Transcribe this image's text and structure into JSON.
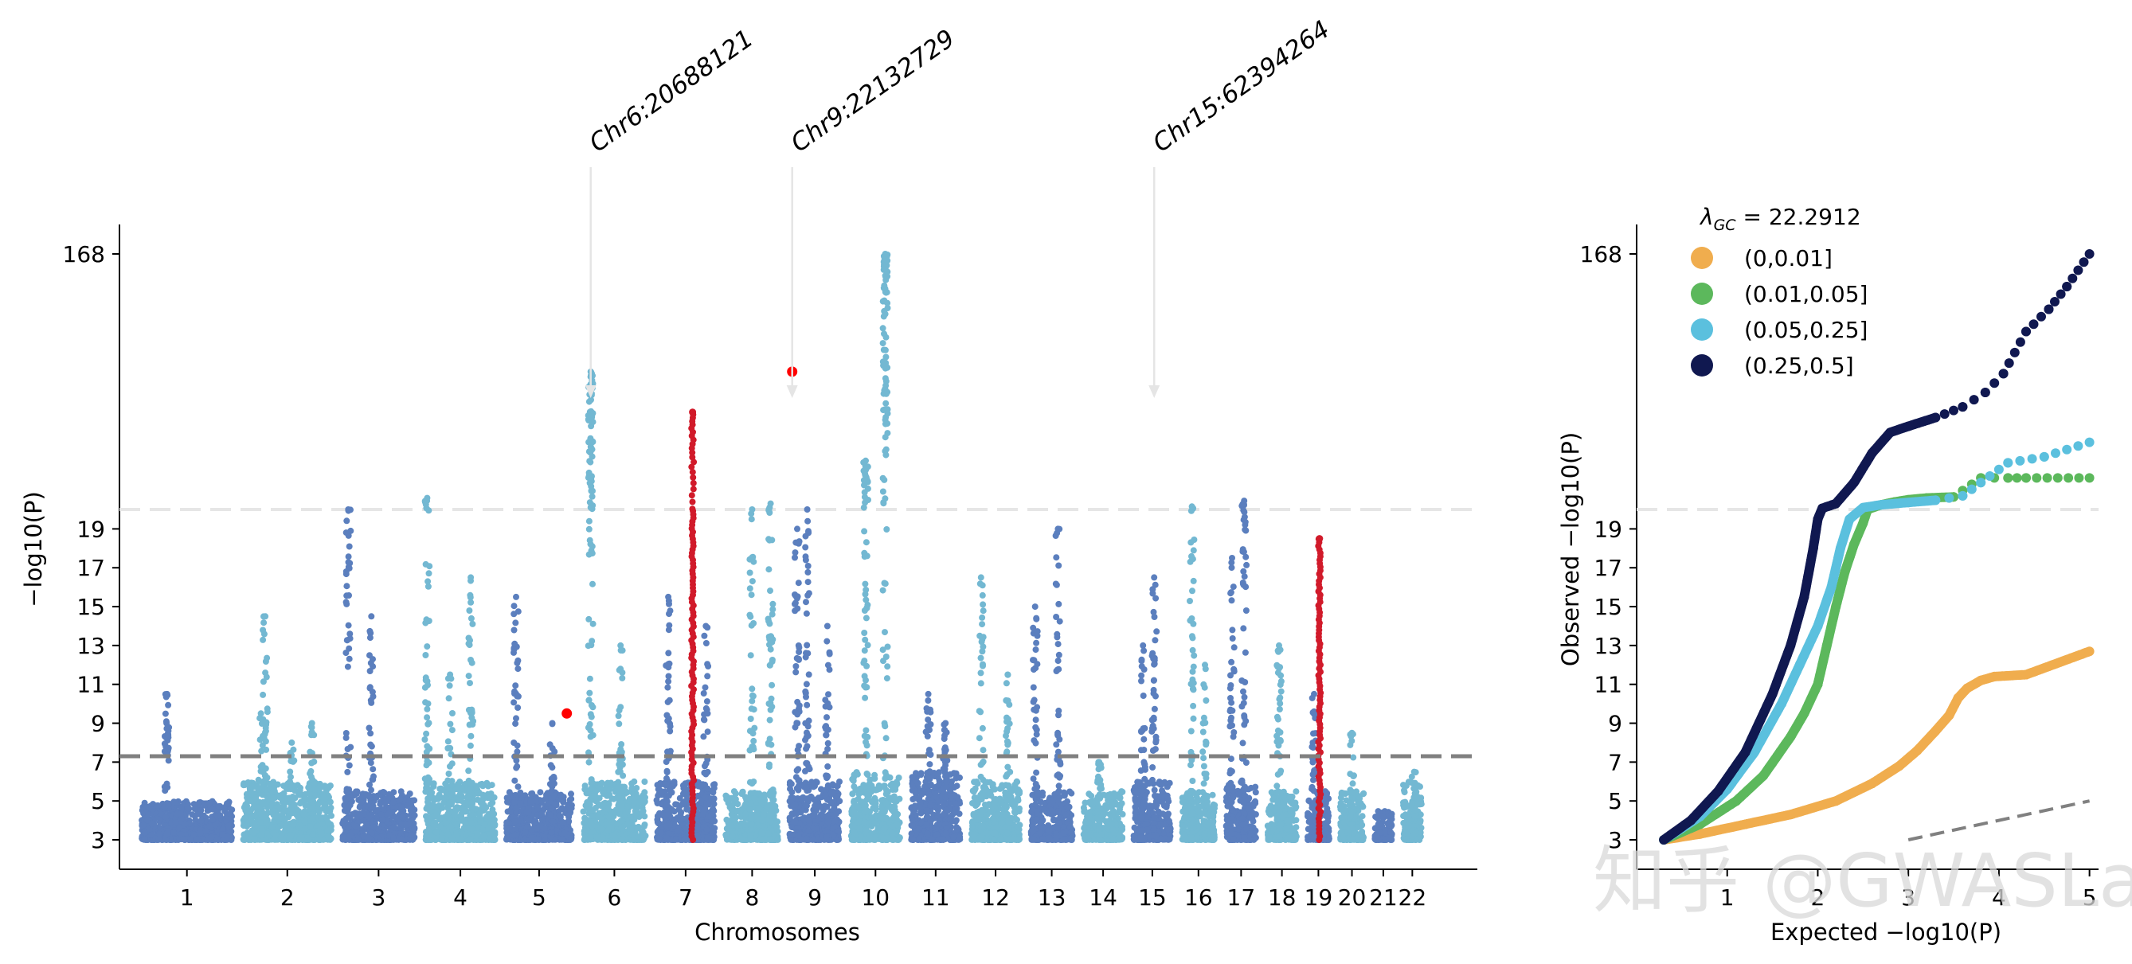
{
  "chart_data": [
    {
      "type": "scatter",
      "title": "",
      "xlabel": "Chromosomes",
      "ylabel": "−log10(P)",
      "yticks": [
        3,
        5,
        7,
        9,
        11,
        13,
        15,
        17,
        19,
        168
      ],
      "y_scale": "broken: linear 3–20, compressed 20–168",
      "chromosomes": [
        {
          "label": "1",
          "size": 248,
          "color": "#5b7fbe",
          "baseline_max": 5.0,
          "peaks": [
            {
              "pos": 0.28,
              "max": 10.5
            }
          ]
        },
        {
          "label": "2",
          "size": 242,
          "color": "#73b8d2",
          "baseline_max": 6.0,
          "peaks": [
            {
              "pos": 0.25,
              "max": 14.5
            },
            {
              "pos": 0.2,
              "max": 9.5
            },
            {
              "pos": 0.78,
              "max": 9.0
            },
            {
              "pos": 0.55,
              "max": 8.0
            }
          ]
        },
        {
          "label": "3",
          "size": 198,
          "color": "#5b7fbe",
          "baseline_max": 5.5,
          "peaks": [
            {
              "pos": 0.08,
              "max": 20.0
            },
            {
              "pos": 0.4,
              "max": 14.5
            }
          ]
        },
        {
          "label": "4",
          "size": 190,
          "color": "#73b8d2",
          "baseline_max": 6.0,
          "peaks": [
            {
              "pos": 0.02,
              "max": 22.0
            },
            {
              "pos": 0.35,
              "max": 11.5
            },
            {
              "pos": 0.65,
              "max": 16.5
            }
          ]
        },
        {
          "label": "5",
          "size": 181,
          "color": "#5b7fbe",
          "baseline_max": 5.5,
          "peaks": [
            {
              "pos": 0.15,
              "max": 15.5
            },
            {
              "pos": 0.7,
              "max": 9.0
            }
          ]
        },
        {
          "label": "6",
          "size": 171,
          "color": "#73b8d2",
          "baseline_max": 6.0,
          "peaks": [
            {
              "pos": 0.12,
              "max": 63.0
            },
            {
              "pos": 0.6,
              "max": 13.0
            }
          ]
        },
        {
          "label": "7",
          "size": 159,
          "color": "#5b7fbe",
          "baseline_max": 6.0,
          "peaks": [
            {
              "pos": 0.2,
              "max": 15.5
            },
            {
              "pos": 0.85,
              "max": 14.0
            }
          ]
        },
        {
          "label": "8",
          "size": 145,
          "color": "#73b8d2",
          "baseline_max": 5.5,
          "peaks": [
            {
              "pos": 0.5,
              "max": 20.0
            },
            {
              "pos": 0.85,
              "max": 21.0
            }
          ]
        },
        {
          "label": "9",
          "size": 138,
          "color": "#5b7fbe",
          "baseline_max": 6.0,
          "peaks": [
            {
              "pos": 0.15,
              "max": 19.0
            },
            {
              "pos": 0.35,
              "max": 20.0
            },
            {
              "pos": 0.75,
              "max": 14.0
            }
          ]
        },
        {
          "label": "10",
          "size": 134,
          "color": "#73b8d2",
          "baseline_max": 6.5,
          "peaks": [
            {
              "pos": 0.3,
              "max": 30.0
            },
            {
              "pos": 0.7,
              "max": 168.0
            }
          ]
        },
        {
          "label": "11",
          "size": 135,
          "color": "#5b7fbe",
          "baseline_max": 6.5,
          "peaks": [
            {
              "pos": 0.35,
              "max": 10.5
            },
            {
              "pos": 0.7,
              "max": 9.0
            }
          ]
        },
        {
          "label": "12",
          "size": 133,
          "color": "#73b8d2",
          "baseline_max": 6.0,
          "peaks": [
            {
              "pos": 0.2,
              "max": 16.5
            },
            {
              "pos": 0.75,
              "max": 11.5
            }
          ]
        },
        {
          "label": "13",
          "size": 114,
          "color": "#5b7fbe",
          "baseline_max": 5.5,
          "peaks": [
            {
              "pos": 0.1,
              "max": 15.0
            },
            {
              "pos": 0.65,
              "max": 19.0
            }
          ]
        },
        {
          "label": "14",
          "size": 107,
          "color": "#73b8d2",
          "baseline_max": 5.5,
          "peaks": [
            {
              "pos": 0.4,
              "max": 7.0
            }
          ]
        },
        {
          "label": "15",
          "size": 102,
          "color": "#5b7fbe",
          "baseline_max": 6.0,
          "peaks": [
            {
              "pos": 0.55,
              "max": 16.5
            },
            {
              "pos": 0.25,
              "max": 13.0
            }
          ]
        },
        {
          "label": "16",
          "size": 90,
          "color": "#73b8d2",
          "baseline_max": 5.5,
          "peaks": [
            {
              "pos": 0.3,
              "max": 20.5
            },
            {
              "pos": 0.7,
              "max": 12.0
            }
          ]
        },
        {
          "label": "17",
          "size": 83,
          "color": "#5b7fbe",
          "baseline_max": 6.0,
          "peaks": [
            {
              "pos": 0.6,
              "max": 21.5
            },
            {
              "pos": 0.2,
              "max": 17.5
            }
          ]
        },
        {
          "label": "18",
          "size": 80,
          "color": "#73b8d2",
          "baseline_max": 5.5,
          "peaks": [
            {
              "pos": 0.4,
              "max": 13.0
            }
          ]
        },
        {
          "label": "19",
          "size": 59,
          "color": "#5b7fbe",
          "baseline_max": 5.5,
          "peaks": [
            {
              "pos": 0.3,
              "max": 10.5
            }
          ]
        },
        {
          "label": "20",
          "size": 64,
          "color": "#73b8d2",
          "baseline_max": 5.5,
          "peaks": [
            {
              "pos": 0.5,
              "max": 8.5
            }
          ]
        },
        {
          "label": "21",
          "size": 47,
          "color": "#5b7fbe",
          "baseline_max": 4.5,
          "peaks": []
        },
        {
          "label": "22",
          "size": 51,
          "color": "#73b8d2",
          "baseline_max": 6.0,
          "peaks": [
            {
              "pos": 0.6,
              "max": 6.5
            }
          ]
        }
      ],
      "highlighted": [
        {
          "chr": "7",
          "pos": 0.62,
          "max": 45.0,
          "color": "#d11a2a"
        },
        {
          "chr": "19",
          "pos": 0.55,
          "max": 18.5,
          "color": "#d11a2a"
        }
      ],
      "lead_variants": [
        {
          "chr": "5",
          "pos": 0.92,
          "y": 9.5,
          "color": "#ff0000"
        },
        {
          "chr": "9",
          "pos": 0.05,
          "y": 63.0,
          "color": "#ff0000"
        }
      ],
      "annotations": [
        {
          "text": "Chr6:20688121",
          "chr": "6",
          "pos": 0.12
        },
        {
          "text": "Chr9:22132729",
          "chr": "9",
          "pos": 0.05
        },
        {
          "text": "Chr15:62394264",
          "chr": "15",
          "pos": 0.55
        }
      ],
      "significance_line": {
        "y": 7.3,
        "color": "#808080",
        "style": "dashed"
      },
      "break_line": {
        "y": 20.0,
        "color": "#e6e6e6",
        "style": "dashed"
      }
    },
    {
      "type": "scatter",
      "title": "",
      "xlabel": "Expected −log10(P)",
      "ylabel": "Observed −log10(P)",
      "xticks": [
        1,
        2,
        3,
        4,
        5
      ],
      "yticks": [
        3,
        5,
        7,
        9,
        11,
        13,
        15,
        17,
        19,
        168
      ],
      "xlim": [
        0.0,
        5.1
      ],
      "legend": {
        "title": "λGC = 22.2912",
        "title_parts": {
          "symbol": "λ",
          "subscript": "GC",
          "value": " = 22.2912"
        },
        "placement": "top-left"
      },
      "series": [
        {
          "name": "(0,0.01]",
          "color": "#f0ad4e",
          "points": [
            [
              0.3,
              3.0
            ],
            [
              0.7,
              3.3
            ],
            [
              1.2,
              3.8
            ],
            [
              1.7,
              4.3
            ],
            [
              2.2,
              5.0
            ],
            [
              2.6,
              5.9
            ],
            [
              2.9,
              6.8
            ],
            [
              3.1,
              7.6
            ],
            [
              3.3,
              8.6
            ],
            [
              3.45,
              9.4
            ],
            [
              3.55,
              10.3
            ],
            [
              3.65,
              10.8
            ],
            [
              3.8,
              11.2
            ],
            [
              3.95,
              11.4
            ],
            [
              4.3,
              11.5
            ],
            [
              5.0,
              12.7
            ]
          ]
        },
        {
          "name": "(0.01,0.05]",
          "color": "#5cb85c",
          "points": [
            [
              0.3,
              3.0
            ],
            [
              0.7,
              3.8
            ],
            [
              1.1,
              5.0
            ],
            [
              1.4,
              6.3
            ],
            [
              1.7,
              8.3
            ],
            [
              1.85,
              9.5
            ],
            [
              2.0,
              11.0
            ],
            [
              2.1,
              13.0
            ],
            [
              2.2,
              15.0
            ],
            [
              2.3,
              16.8
            ],
            [
              2.4,
              18.2
            ],
            [
              2.5,
              19.3
            ],
            [
              2.55,
              20.0
            ],
            [
              2.7,
              20.8
            ],
            [
              2.85,
              21.3
            ],
            [
              3.0,
              21.7
            ],
            [
              3.2,
              22.0
            ],
            [
              3.5,
              22.2
            ],
            [
              3.8,
              26.0
            ],
            [
              4.1,
              26.0
            ],
            [
              4.3,
              26.0
            ],
            [
              5.0,
              26.0
            ]
          ]
        },
        {
          "name": "(0.05,0.25]",
          "color": "#5bc0de",
          "points": [
            [
              0.3,
              3.0
            ],
            [
              0.7,
              4.2
            ],
            [
              1.0,
              5.6
            ],
            [
              1.3,
              7.5
            ],
            [
              1.6,
              10.0
            ],
            [
              1.8,
              12.0
            ],
            [
              2.0,
              14.0
            ],
            [
              2.15,
              16.0
            ],
            [
              2.25,
              18.0
            ],
            [
              2.35,
              19.5
            ],
            [
              2.5,
              20.3
            ],
            [
              2.7,
              20.8
            ],
            [
              3.0,
              21.2
            ],
            [
              3.3,
              21.6
            ],
            [
              3.6,
              22.4
            ],
            [
              3.8,
              25.0
            ],
            [
              4.1,
              29.5
            ],
            [
              4.5,
              31.0
            ],
            [
              5.0,
              35.0
            ]
          ]
        },
        {
          "name": "(0.25,0.5]",
          "color": "#101850",
          "points": [
            [
              0.3,
              3.0
            ],
            [
              0.6,
              4.0
            ],
            [
              0.9,
              5.5
            ],
            [
              1.2,
              7.5
            ],
            [
              1.5,
              10.5
            ],
            [
              1.7,
              13.0
            ],
            [
              1.85,
              15.5
            ],
            [
              1.95,
              18.0
            ],
            [
              2.0,
              19.5
            ],
            [
              2.05,
              20.2
            ],
            [
              2.2,
              21.0
            ],
            [
              2.4,
              25.0
            ],
            [
              2.6,
              32.0
            ],
            [
              2.8,
              38.0
            ],
            [
              3.0,
              40.0
            ],
            [
              3.3,
              43.0
            ],
            [
              3.6,
              47.0
            ],
            [
              3.85,
              53.0
            ],
            [
              4.05,
              62.0
            ],
            [
              4.3,
              88.0
            ],
            [
              4.55,
              106.0
            ],
            [
              4.75,
              128.0
            ],
            [
              5.0,
              168.0
            ]
          ]
        }
      ],
      "reference_line": {
        "from": [
          3.0,
          3.0
        ],
        "to": [
          5.0,
          5.0
        ],
        "color": "#808080",
        "style": "dashed"
      },
      "break_line": {
        "y": 20.0,
        "color": "#e6e6e6",
        "style": "dashed"
      }
    }
  ],
  "watermark": {
    "text": "知乎 @GWASLab"
  }
}
